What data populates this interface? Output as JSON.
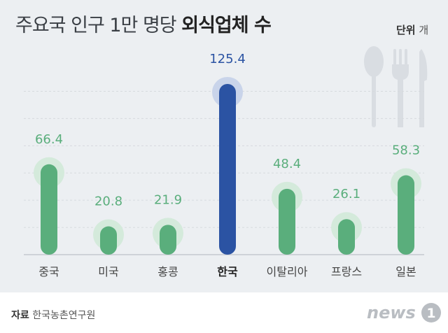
{
  "title_regular": "주요국 인구 1만 명당",
  "title_bold": "외식업체 수",
  "unit_label": "단위",
  "unit_value": "개",
  "source_label": "자료",
  "source_value": "한국농촌연구원",
  "logo_text": "news",
  "logo_mark": "1",
  "colors": {
    "bar_default": "#5aae7c",
    "bar_highlight": "#2b53a3",
    "label_default": "#5aae7c",
    "label_highlight": "#2b53a3",
    "halo_default": "#d4eadb",
    "halo_highlight": "#c9d4ea"
  },
  "icons": [
    "spoon-icon",
    "fork-icon",
    "knife-icon"
  ],
  "chart_data": {
    "type": "bar",
    "categories": [
      "중국",
      "미국",
      "홍콩",
      "한국",
      "이탈리아",
      "프랑스",
      "일본"
    ],
    "values": [
      66.4,
      20.8,
      21.9,
      125.4,
      48.4,
      26.1,
      58.3
    ],
    "value_labels": [
      "66.4",
      "20.8",
      "21.9",
      "125.4",
      "48.4",
      "26.1",
      "58.3"
    ],
    "highlight": "한국",
    "ylim": [
      0,
      140
    ],
    "grid": true
  }
}
